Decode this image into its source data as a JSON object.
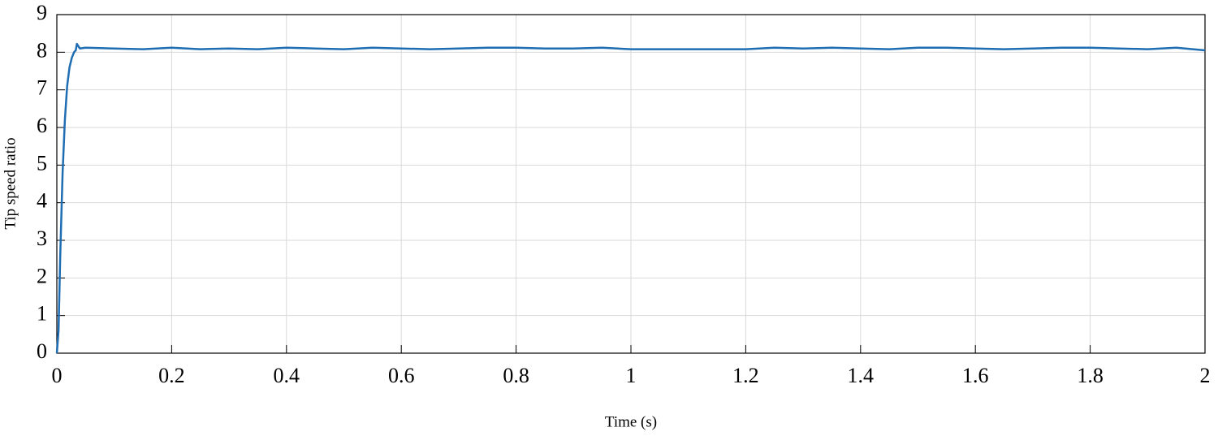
{
  "chart_data": {
    "type": "line",
    "xlabel": "Time (s)",
    "ylabel": "Tip speed ratio",
    "x": [
      0,
      0.003,
      0.006,
      0.01,
      0.014,
      0.018,
      0.022,
      0.026,
      0.03,
      0.033,
      0.035,
      0.04,
      0.05,
      0.1,
      0.15,
      0.2,
      0.25,
      0.3,
      0.35,
      0.4,
      0.45,
      0.5,
      0.55,
      0.6,
      0.65,
      0.7,
      0.75,
      0.8,
      0.85,
      0.9,
      0.95,
      1.0,
      1.05,
      1.1,
      1.15,
      1.2,
      1.25,
      1.3,
      1.35,
      1.4,
      1.45,
      1.5,
      1.55,
      1.6,
      1.65,
      1.7,
      1.75,
      1.8,
      1.85,
      1.9,
      1.95,
      2.0
    ],
    "series": [
      {
        "color": "#1f6db3",
        "values": [
          0,
          0.6,
          2.6,
          4.8,
          6.2,
          7.1,
          7.6,
          7.85,
          8.0,
          8.05,
          8.22,
          8.1,
          8.12,
          8.1,
          8.08,
          8.12,
          8.08,
          8.1,
          8.08,
          8.12,
          8.1,
          8.08,
          8.12,
          8.1,
          8.08,
          8.1,
          8.12,
          8.12,
          8.1,
          8.1,
          8.12,
          8.08,
          8.08,
          8.08,
          8.08,
          8.08,
          8.12,
          8.1,
          8.12,
          8.1,
          8.08,
          8.12,
          8.12,
          8.1,
          8.08,
          8.1,
          8.12,
          8.12,
          8.1,
          8.08,
          8.12,
          8.05
        ]
      }
    ],
    "xlim": [
      0,
      2
    ],
    "ylim": [
      0,
      9
    ],
    "xticks": [
      0,
      0.2,
      0.4,
      0.6,
      0.8,
      1,
      1.2,
      1.4,
      1.6,
      1.8,
      2
    ],
    "yticks": [
      0,
      1,
      2,
      3,
      4,
      5,
      6,
      7,
      8,
      9
    ],
    "grid": true
  }
}
